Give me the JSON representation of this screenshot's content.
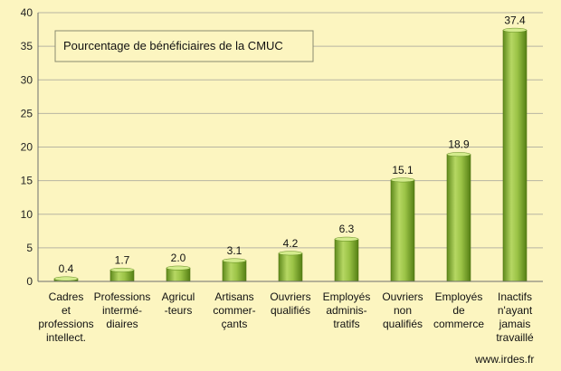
{
  "chart_data": {
    "type": "bar",
    "title": "Pourcentage de bénéficiaires de la CMUC",
    "xlabel": "",
    "ylabel": "",
    "ylim": [
      0,
      40
    ],
    "yticks": [
      0,
      5,
      10,
      15,
      20,
      25,
      30,
      35,
      40
    ],
    "grid": true,
    "legend": "none",
    "categories": [
      [
        "Cadres",
        "et",
        "professions",
        "intellect."
      ],
      [
        "Professions",
        "intermé-",
        "diaires"
      ],
      [
        "Agricul",
        "-teurs"
      ],
      [
        "Artisans",
        "commer-",
        "çants"
      ],
      [
        "Ouvriers",
        "qualifiés"
      ],
      [
        "Employés",
        "adminis-",
        "tratifs"
      ],
      [
        "Ouvriers",
        "non",
        "qualifiés"
      ],
      [
        "Employés",
        "de",
        "commerce"
      ],
      [
        "Inactifs",
        "n'ayant",
        "jamais",
        "travaillé"
      ]
    ],
    "values": [
      0.4,
      1.7,
      2.0,
      3.1,
      4.2,
      6.3,
      15.1,
      18.9,
      37.4
    ],
    "data_labels": [
      "0.4",
      "1.7",
      "2.0",
      "3.1",
      "4.2",
      "6.3",
      "15.1",
      "18.9",
      "37.4"
    ],
    "colors": {
      "background": "#fcf5c0",
      "bar_light": "#c8e27a",
      "bar_mid": "#8db73a",
      "bar_dark": "#4f7512",
      "grid": "#b7b5a2"
    }
  },
  "credit": "www.irdes.fr"
}
